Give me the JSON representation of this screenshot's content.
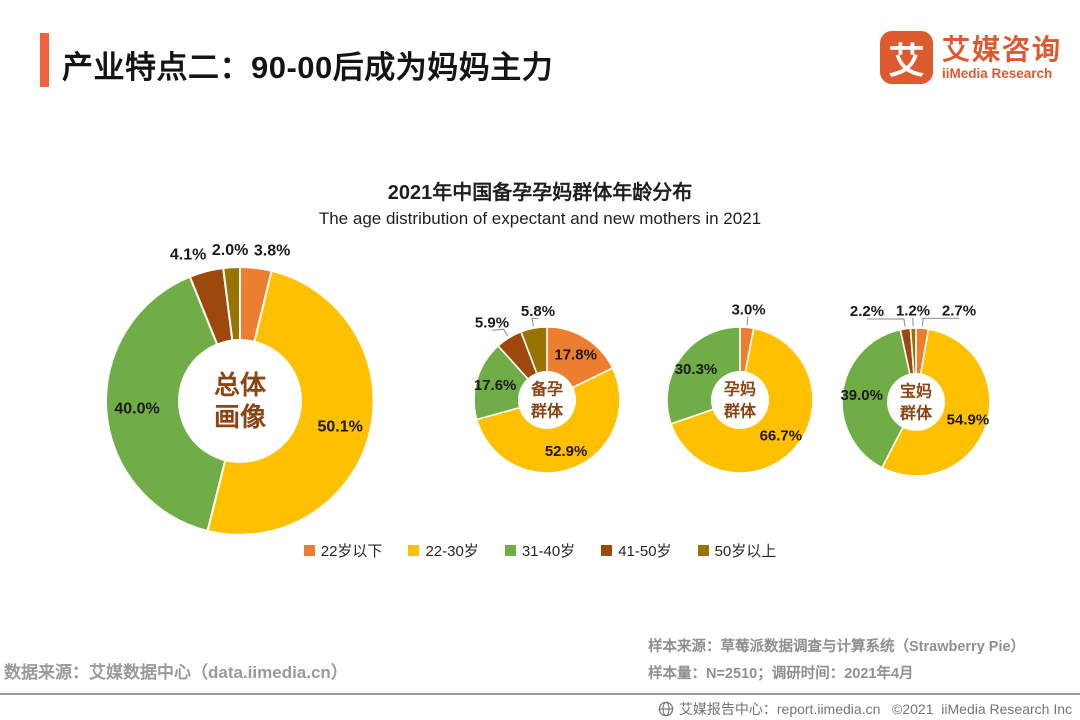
{
  "header": {
    "title": "产业特点二：90-00后成为妈妈主力"
  },
  "logo": {
    "mark_char": "艾",
    "name_cn": "艾媒咨询",
    "name_en": "iiMedia Research"
  },
  "brand": {
    "accent_bar": "#F2613C",
    "logo_orange": "#DD5A2F"
  },
  "chart_data": {
    "type": "pie",
    "title": "2021年中国备孕孕妈群体年龄分布",
    "subtitle": "The age distribution of expectant and new mothers in 2021",
    "unit": "%",
    "categories": [
      "22岁以下",
      "22-30岁",
      "31-40岁",
      "41-50岁",
      "50岁以上"
    ],
    "colors": [
      "#ED7D31",
      "#FFC000",
      "#70AD47",
      "#9E480E",
      "#997300"
    ],
    "center_label_color": "#8B4513",
    "label_color": "#1a1a1a",
    "legend_position": "bottom",
    "donuts": [
      {
        "name": "总体画像",
        "name_lines": [
          "总体",
          "画像"
        ],
        "values": [
          3.8,
          50.1,
          40.0,
          4.1,
          2.0
        ]
      },
      {
        "name": "备孕群体",
        "name_lines": [
          "备孕",
          "群体"
        ],
        "values": [
          17.8,
          52.9,
          17.6,
          5.9,
          5.8
        ]
      },
      {
        "name": "孕妈群体",
        "name_lines": [
          "孕妈",
          "群体"
        ],
        "values": [
          3.0,
          66.7,
          30.3,
          null,
          null
        ]
      },
      {
        "name": "宝妈群体",
        "name_lines": [
          "宝妈",
          "群体"
        ],
        "values": [
          2.7,
          54.9,
          39.0,
          2.2,
          1.2
        ]
      }
    ]
  },
  "sources": {
    "data_source": "数据来源：艾媒数据中心（data.iimedia.cn）",
    "sample_source": "样本来源：草莓派数据调查与计算系统（Strawberry Pie）",
    "sample_size": "样本量：N=2510；调研时间：2021年4月"
  },
  "footer": {
    "text": "艾媒报告中心：report.iimedia.cn   ©2021  iiMedia Research Inc"
  }
}
